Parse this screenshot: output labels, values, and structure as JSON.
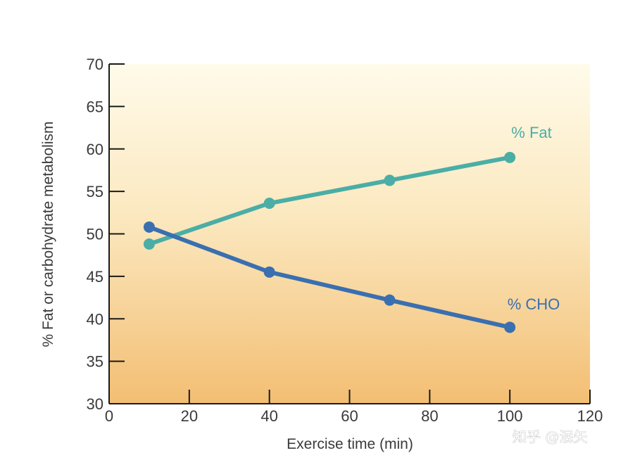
{
  "chart_data": {
    "type": "line",
    "title": "",
    "xlabel": "Exercise time (min)",
    "ylabel": "% Fat or carbohydrate metabolism",
    "xlim": [
      0,
      120
    ],
    "ylim": [
      30,
      70
    ],
    "x_ticks": [
      0,
      20,
      40,
      60,
      80,
      100,
      120
    ],
    "y_ticks": [
      30,
      35,
      40,
      45,
      50,
      55,
      60,
      65,
      70
    ],
    "grid": false,
    "series": [
      {
        "name": "% Fat",
        "color": "#4aaea6",
        "points": [
          [
            10,
            48.8
          ],
          [
            40,
            53.6
          ],
          [
            70,
            56.3
          ],
          [
            100,
            59.0
          ]
        ]
      },
      {
        "name": "% CHO",
        "color": "#3a6fb0",
        "points": [
          [
            10,
            50.8
          ],
          [
            40,
            45.5
          ],
          [
            70,
            42.2
          ],
          [
            100,
            39.0
          ]
        ]
      }
    ]
  },
  "watermark": "知乎 @泯矢"
}
